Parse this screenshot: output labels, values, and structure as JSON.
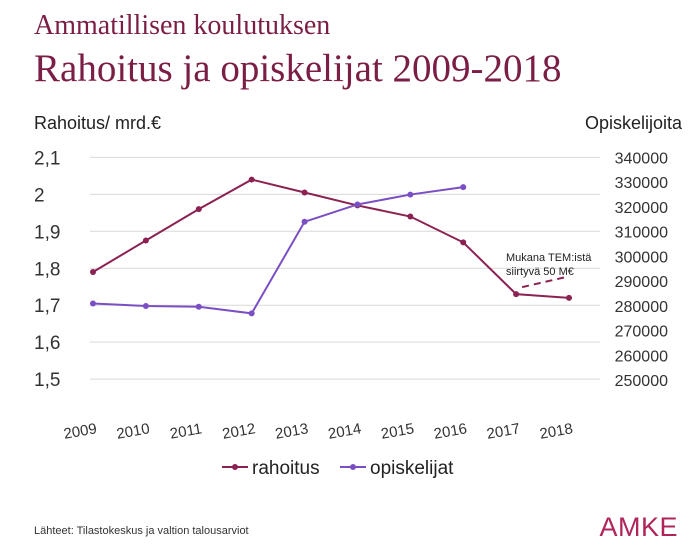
{
  "header": {
    "supertitle": "Ammatillisen koulutuksen",
    "title": "Rahoitus ja opiskelijat 2009-2018"
  },
  "footer": {
    "source": "Lähteet: Tilastokeskus ja valtion talousarviot",
    "logo": "AMKE"
  },
  "colors": {
    "rahoitus": "#8b2252",
    "opiskelijat": "#7b4fc4",
    "grid": "#d9d9d9",
    "brand": "#b0245c"
  },
  "chart_data": {
    "type": "line",
    "categories": [
      "2009",
      "2010",
      "2011",
      "2012",
      "2013",
      "2014",
      "2015",
      "2016",
      "2017",
      "2018"
    ],
    "left_axis": {
      "label": "Rahoitus/ mrd.€",
      "ticks": [
        "2,1",
        "2",
        "1,9",
        "1,8",
        "1,7",
        "1,6",
        "1,5"
      ],
      "range": [
        1.43,
        2.12
      ]
    },
    "right_axis": {
      "label": "Opiskelijoita",
      "ticks": [
        "340000",
        "330000",
        "320000",
        "310000",
        "300000",
        "290000",
        "280000",
        "270000",
        "260000",
        "250000"
      ],
      "range": [
        240000,
        343000
      ]
    },
    "series": [
      {
        "name": "rahoitus",
        "axis": "left",
        "values": [
          1.79,
          1.875,
          1.96,
          2.04,
          2.005,
          1.97,
          1.94,
          1.87,
          1.73,
          1.72
        ]
      },
      {
        "name": "opiskelijat",
        "axis": "right",
        "values": [
          281000,
          280000,
          279700,
          277000,
          314000,
          321000,
          325000,
          328000,
          null,
          null
        ]
      }
    ],
    "projection": {
      "series": "rahoitus",
      "from": [
        "2017",
        1.73
      ],
      "to": [
        "2018",
        1.77
      ],
      "label_lines": [
        "Mukana TEM:istä",
        "siirtyvä 50 M€"
      ]
    },
    "grid": true,
    "legend": "bottom"
  }
}
